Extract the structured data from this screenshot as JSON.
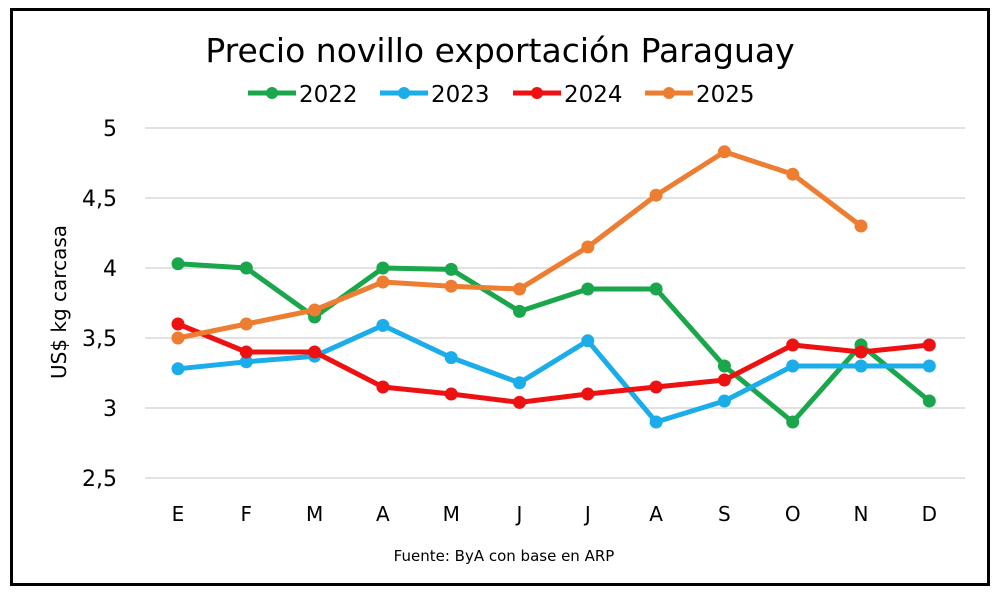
{
  "chart_data": {
    "type": "line",
    "title": "Precio novillo exportación Paraguay",
    "xlabel": "",
    "ylabel": "US$ kg carcasa",
    "source": "Fuente: ByA con base en ARP",
    "categories": [
      "E",
      "F",
      "M",
      "A",
      "M",
      "J",
      "J",
      "A",
      "S",
      "O",
      "N",
      "D"
    ],
    "ylim": [
      2.5,
      5
    ],
    "yticks": [
      2.5,
      3,
      3.5,
      4,
      4.5,
      5
    ],
    "ytick_labels": [
      "2,5",
      "3",
      "3,5",
      "4",
      "4,5",
      "5"
    ],
    "grid": true,
    "legend_position": "top",
    "series": [
      {
        "name": "2022",
        "color": "#1aa64a",
        "values": [
          4.03,
          4.0,
          3.65,
          4.0,
          3.99,
          3.69,
          3.85,
          3.85,
          3.3,
          2.9,
          3.45,
          3.05
        ]
      },
      {
        "name": "2023",
        "color": "#1aadea",
        "values": [
          3.28,
          3.33,
          3.37,
          3.59,
          3.36,
          3.18,
          3.48,
          2.9,
          3.05,
          3.3,
          3.3,
          3.3
        ]
      },
      {
        "name": "2024",
        "color": "#ee1111",
        "values": [
          3.6,
          3.4,
          3.4,
          3.15,
          3.1,
          3.04,
          3.1,
          3.15,
          3.2,
          3.45,
          3.4,
          3.45
        ]
      },
      {
        "name": "2025",
        "color": "#ed7d31",
        "values": [
          3.5,
          3.6,
          3.7,
          3.9,
          3.87,
          3.85,
          4.15,
          4.52,
          4.83,
          4.67,
          4.3,
          null
        ]
      }
    ]
  }
}
